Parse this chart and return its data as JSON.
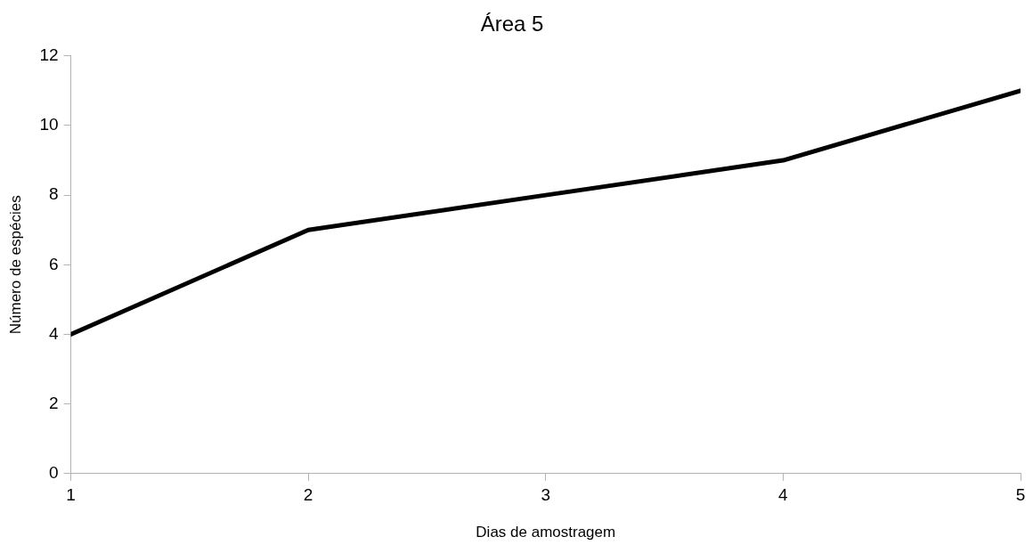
{
  "chart_data": {
    "type": "line",
    "title": "Área 5",
    "xlabel": "Dias de amostragem",
    "ylabel": "Número de espécies",
    "x": [
      1,
      2,
      3,
      4,
      5
    ],
    "series": [
      {
        "color": "#000000",
        "values": [
          4,
          7,
          8,
          9,
          11
        ]
      }
    ],
    "xlim": [
      1,
      5
    ],
    "xticks": [
      1,
      2,
      3,
      4,
      5
    ],
    "ylim": [
      0,
      12
    ],
    "yticks": [
      0,
      2,
      4,
      6,
      8,
      10,
      12
    ],
    "grid": false,
    "legend": false,
    "marker": "none",
    "line_style": "solid"
  }
}
